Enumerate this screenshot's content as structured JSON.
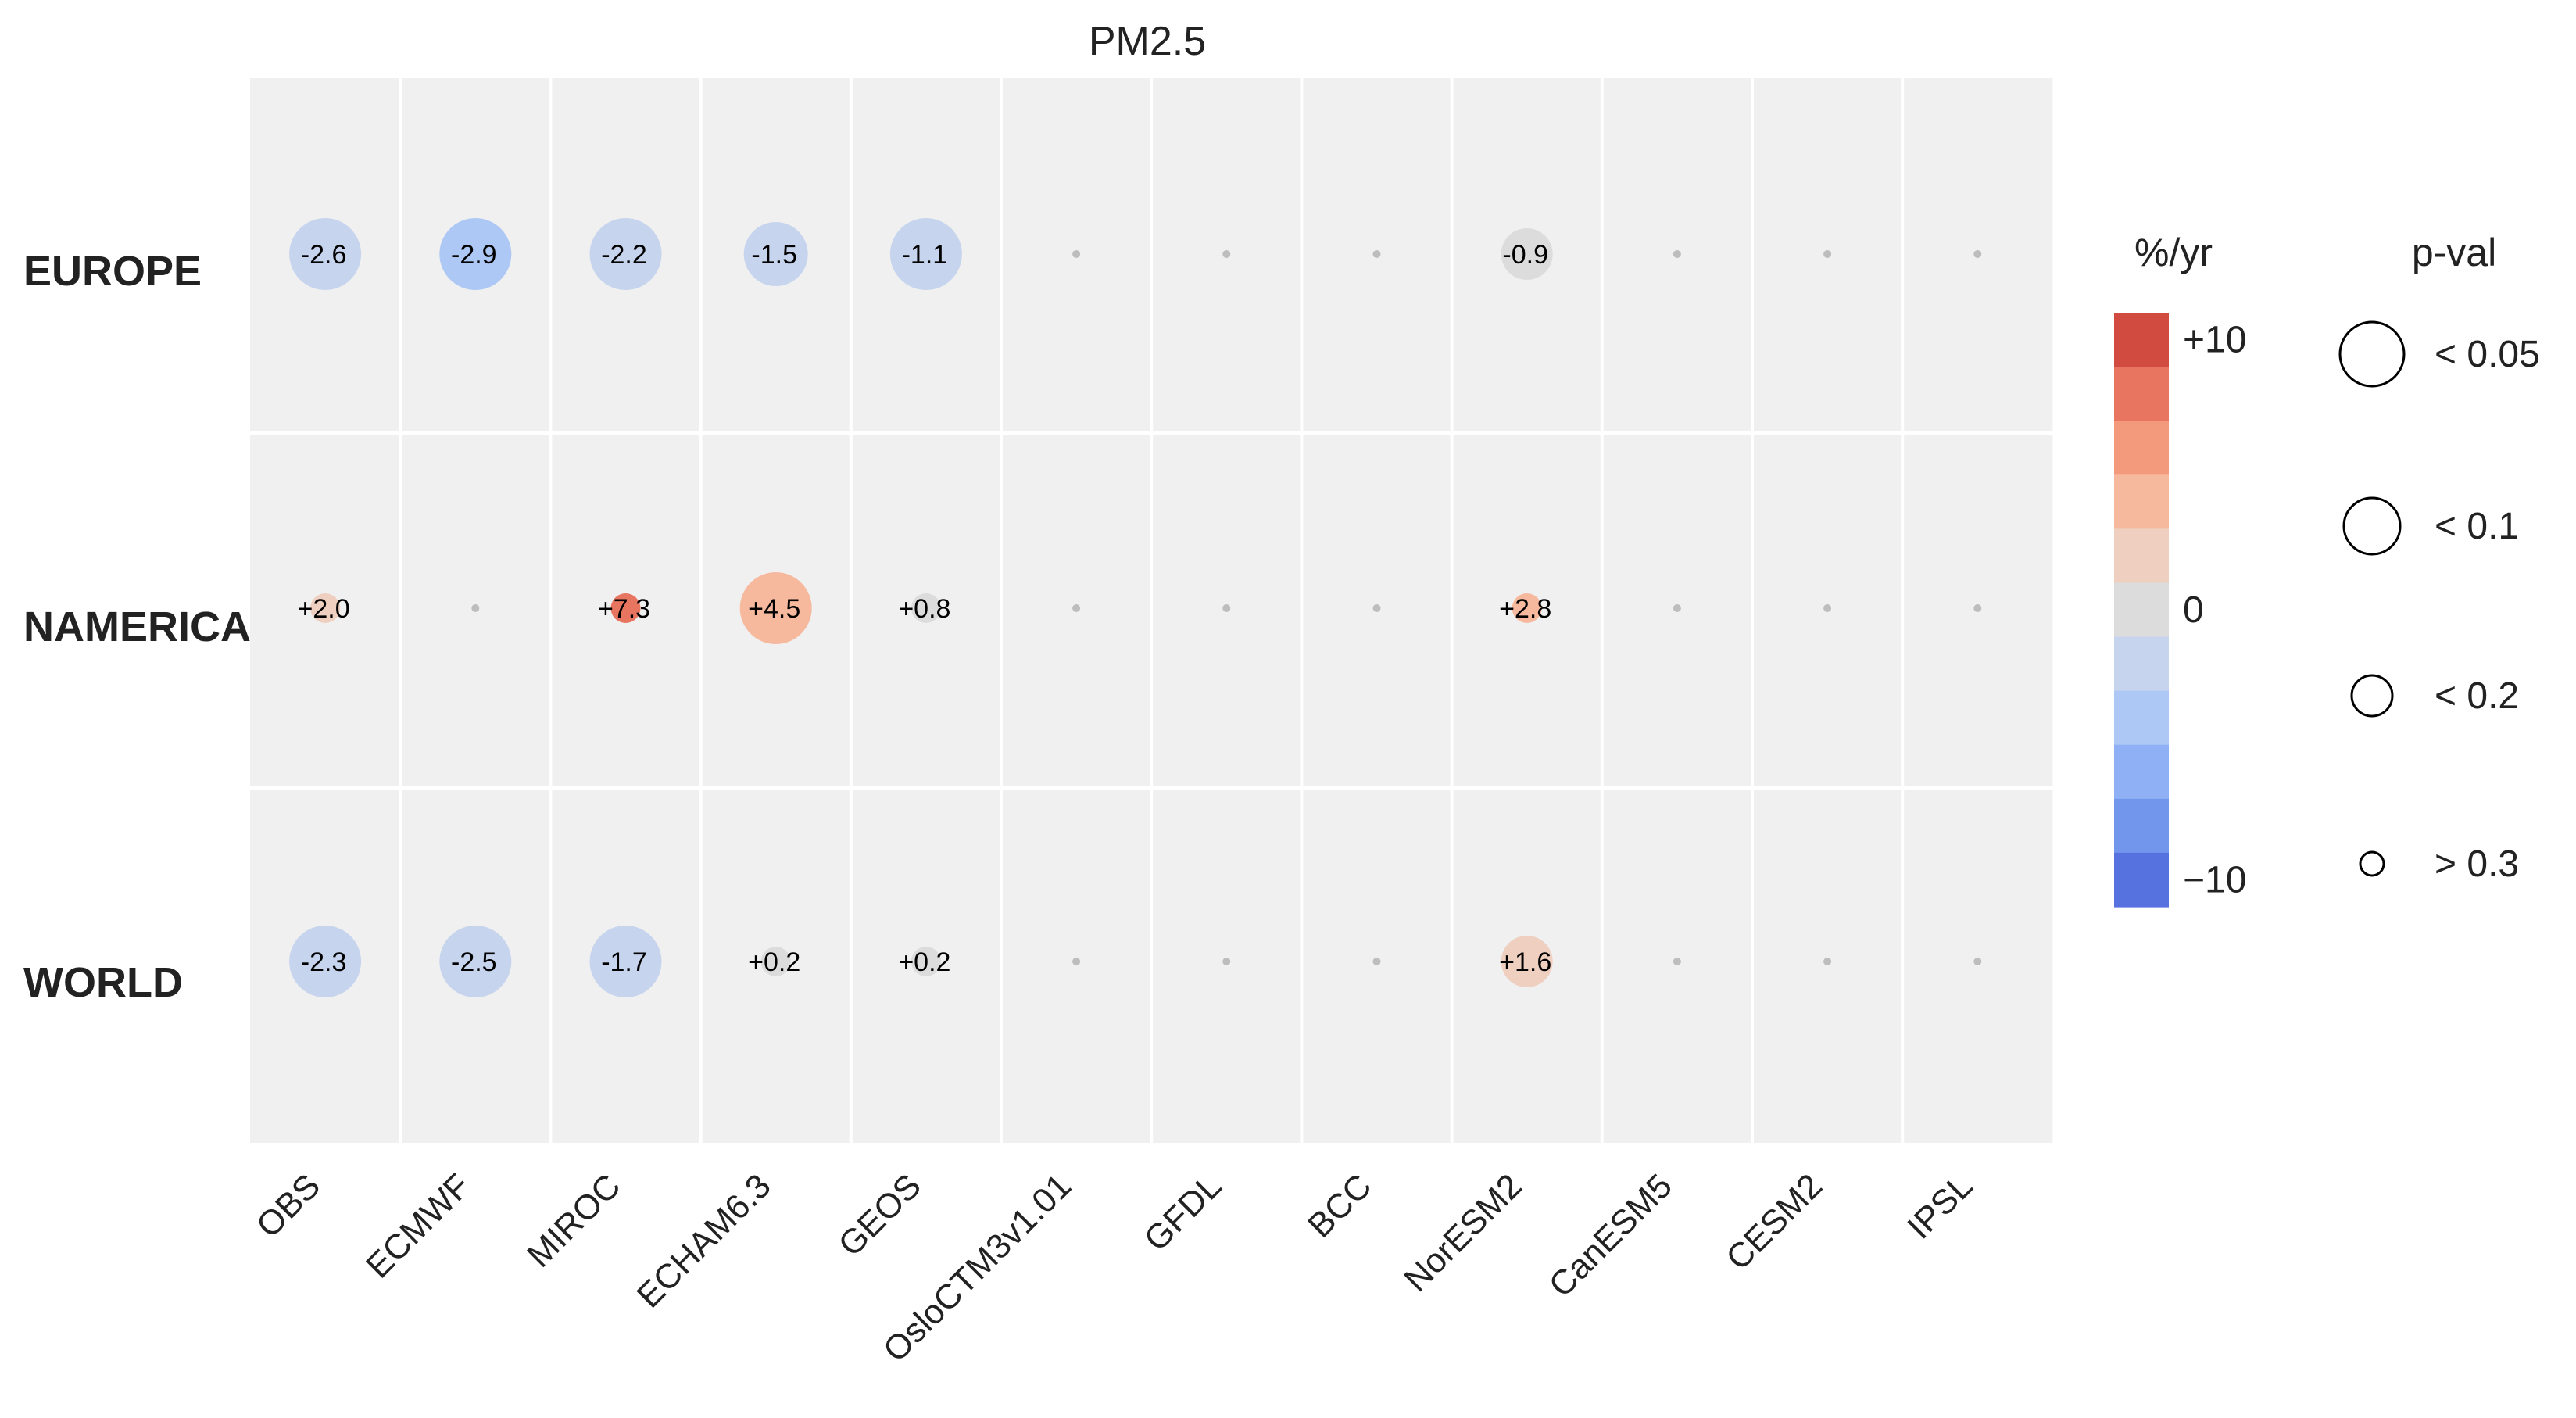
{
  "chart_data": {
    "type": "heatmap",
    "title": "PM2.5",
    "columns": [
      "OBS",
      "ECMWF",
      "MIROC",
      "ECHAM6.3",
      "GEOS",
      "OsloCTM3v1.01",
      "GFDL",
      "BCC",
      "NorESM2",
      "CanESM5",
      "CESM2",
      "IPSL"
    ],
    "rows": [
      "EUROPE",
      "NAMERICA",
      "WORLD"
    ],
    "cells": [
      [
        {
          "value": -2.6,
          "label": "-2.6",
          "pval": "< 0.05"
        },
        {
          "value": -2.9,
          "label": "-2.9",
          "pval": "< 0.05"
        },
        {
          "value": -2.2,
          "label": "-2.2",
          "pval": "< 0.05"
        },
        {
          "value": -1.5,
          "label": "-1.5",
          "pval": "< 0.1"
        },
        {
          "value": -1.1,
          "label": "-1.1",
          "pval": "< 0.05"
        },
        null,
        null,
        null,
        {
          "value": -0.9,
          "label": "-0.9",
          "pval": "< 0.2"
        },
        null,
        null,
        null
      ],
      [
        {
          "value": 2.0,
          "label": "+2.0",
          "pval": "> 0.3"
        },
        null,
        {
          "value": 7.3,
          "label": "+7.3",
          "pval": "> 0.3"
        },
        {
          "value": 4.5,
          "label": "+4.5",
          "pval": "< 0.05"
        },
        {
          "value": 0.8,
          "label": "+0.8",
          "pval": "> 0.3"
        },
        null,
        null,
        null,
        {
          "value": 2.8,
          "label": "+2.8",
          "pval": "> 0.3"
        },
        null,
        null,
        null
      ],
      [
        {
          "value": -2.3,
          "label": "-2.3",
          "pval": "< 0.05"
        },
        {
          "value": -2.5,
          "label": "-2.5",
          "pval": "< 0.05"
        },
        {
          "value": -1.7,
          "label": "-1.7",
          "pval": "< 0.05"
        },
        {
          "value": 0.2,
          "label": "+0.2",
          "pval": "> 0.3"
        },
        {
          "value": 0.2,
          "label": "+0.2",
          "pval": "> 0.3"
        },
        null,
        null,
        null,
        {
          "value": 1.6,
          "label": "+1.6",
          "pval": "< 0.2"
        },
        null,
        null,
        null
      ]
    ],
    "colorbar": {
      "title": "%/yr",
      "range": [
        -10,
        10
      ],
      "ticks": [
        "+10",
        "0",
        "−10"
      ],
      "colors": [
        "#d24b40",
        "#e8755f",
        "#f39a7d",
        "#f6b99e",
        "#efcfbf",
        "#dcdcdc",
        "#c6d4ee",
        "#adc8f4",
        "#8fb0f4",
        "#7196ec",
        "#5572df"
      ]
    },
    "size_legend": {
      "title": "p-val",
      "entries": [
        "< 0.05",
        "< 0.1",
        "< 0.2",
        "> 0.3"
      ]
    },
    "background": "#f0f0f0",
    "grid_color": "#ffffff",
    "legend_position": "right"
  }
}
